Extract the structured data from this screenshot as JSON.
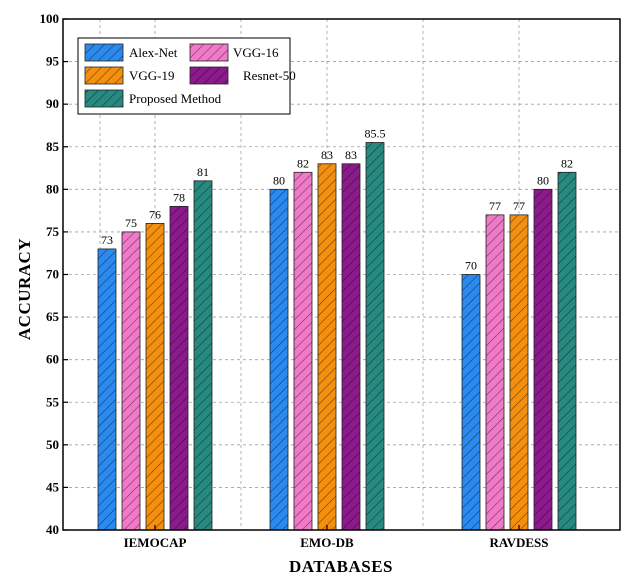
{
  "chart_data": {
    "type": "bar",
    "title": "",
    "xlabel": "DATABASES",
    "ylabel": "ACCURACY",
    "ylim": [
      40,
      100
    ],
    "yticks": [
      40,
      45,
      50,
      55,
      60,
      65,
      70,
      75,
      80,
      85,
      90,
      95,
      100
    ],
    "grid": true,
    "legend_position": "top-left",
    "categories": [
      "IEMOCAP",
      "EMO-DB",
      "RAVDESS"
    ],
    "series": [
      {
        "name": "Alex-Net",
        "color": "#2a8af0",
        "values": [
          73,
          80,
          70
        ],
        "labels": [
          "73",
          "80",
          "70"
        ]
      },
      {
        "name": "VGG-16",
        "color": "#f07ac8",
        "values": [
          75,
          82,
          77
        ],
        "labels": [
          "75",
          "82",
          "77"
        ]
      },
      {
        "name": "VGG-19",
        "color": "#f5900e",
        "values": [
          76,
          83,
          77
        ],
        "labels": [
          "76",
          "83",
          "77"
        ]
      },
      {
        "name": "Resnet-50",
        "color": "#8c1a8c",
        "values": [
          78,
          83,
          80
        ],
        "labels": [
          "78",
          "83",
          "80"
        ]
      },
      {
        "name": "Proposed Method",
        "color": "#268a80",
        "values": [
          81,
          85.5,
          82
        ],
        "labels": [
          "81",
          "85.5",
          "82"
        ]
      }
    ]
  }
}
